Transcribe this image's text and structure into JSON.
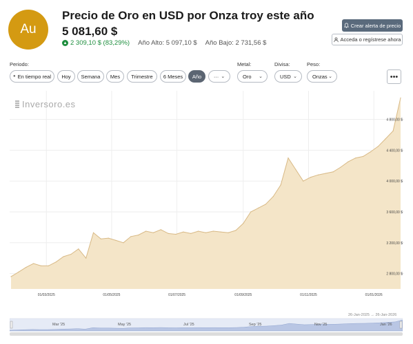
{
  "header": {
    "logo_text": "Au",
    "title": "Precio de Oro en USD por Onza troy este año",
    "price": "5 081,60 $",
    "change": "2 309,10 $ (83,29%)",
    "high": "Año Alto: 5 097,10 $",
    "low": "Año Bajo: 2 731,56 $"
  },
  "actions": {
    "alert": "Crear alerta de precio",
    "login": "Acceda o regístrese ahora"
  },
  "controls": {
    "period_label": "Periodo:",
    "periods": [
      "En tiempo real",
      "Hoy",
      "Semana",
      "Mes",
      "Trimestre",
      "6 Meses",
      "Año",
      "···"
    ],
    "active_period": "Año",
    "metal_label": "Metal:",
    "metal": "Oro",
    "currency_label": "Divisa:",
    "currency": "USD",
    "weight_label": "Peso:",
    "weight": "Onzas",
    "menu": "•••"
  },
  "watermark": "Inversoro.es",
  "colors": {
    "accent": "#d49a12",
    "fill": "#f4e5c8",
    "line": "#d8b985",
    "active": "#5b6572"
  },
  "navigator": {
    "from": "26-Jan-2025",
    "to": "26-Jan-2026",
    "labels": [
      "Mar '25",
      "May '25",
      "Jul '25",
      "Sep '25",
      "Nov '25",
      "Jan '26"
    ]
  },
  "chart_data": {
    "type": "area",
    "title": "",
    "x_ticks": [
      "01/03/2025",
      "01/05/2025",
      "01/07/2025",
      "01/09/2025",
      "01/11/2025",
      "01/01/2026"
    ],
    "y_ticks": [
      2800,
      3200,
      3600,
      4000,
      4400,
      4800
    ],
    "y_tick_labels": [
      "2 800,00 $",
      "3 200,00 $",
      "3 600,00 $",
      "4 000,00 $",
      "4 400,00 $",
      "4 800,00 $"
    ],
    "ylim": [
      2600,
      5100
    ],
    "grid": true,
    "x": [
      "2025-01-27",
      "2025-02-03",
      "2025-02-10",
      "2025-02-17",
      "2025-02-24",
      "2025-03-03",
      "2025-03-10",
      "2025-03-17",
      "2025-03-24",
      "2025-03-31",
      "2025-04-07",
      "2025-04-14",
      "2025-04-21",
      "2025-04-28",
      "2025-05-05",
      "2025-05-12",
      "2025-05-19",
      "2025-05-26",
      "2025-06-02",
      "2025-06-09",
      "2025-06-16",
      "2025-06-23",
      "2025-06-30",
      "2025-07-07",
      "2025-07-14",
      "2025-07-21",
      "2025-07-28",
      "2025-08-04",
      "2025-08-11",
      "2025-08-18",
      "2025-08-25",
      "2025-09-01",
      "2025-09-08",
      "2025-09-15",
      "2025-09-22",
      "2025-09-29",
      "2025-10-06",
      "2025-10-13",
      "2025-10-20",
      "2025-10-27",
      "2025-11-03",
      "2025-11-10",
      "2025-11-17",
      "2025-11-24",
      "2025-12-01",
      "2025-12-08",
      "2025-12-15",
      "2025-12-22",
      "2025-12-29",
      "2026-01-05",
      "2026-01-12",
      "2026-01-19",
      "2026-01-26"
    ],
    "series": [
      {
        "values": [
          2760,
          2820,
          2880,
          2930,
          2900,
          2900,
          2950,
          3020,
          3050,
          3120,
          3000,
          3330,
          3250,
          3260,
          3230,
          3200,
          3280,
          3300,
          3350,
          3330,
          3370,
          3320,
          3310,
          3340,
          3320,
          3350,
          3330,
          3350,
          3340,
          3330,
          3360,
          3450,
          3600,
          3650,
          3700,
          3800,
          3950,
          4300,
          4150,
          4000,
          4050,
          4080,
          4100,
          4120,
          4180,
          4250,
          4300,
          4320,
          4380,
          4450,
          4550,
          4650,
          5080
        ]
      }
    ]
  }
}
